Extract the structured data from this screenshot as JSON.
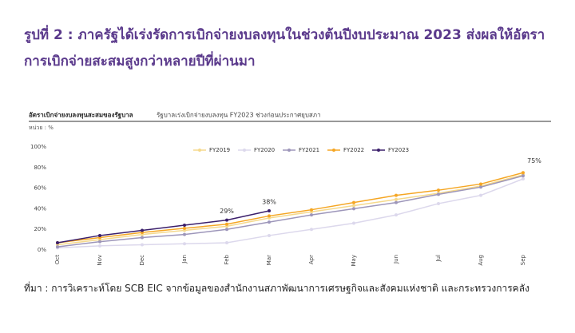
{
  "header": {
    "title": "รูปที่ 2 : ภาครัฐได้เร่งรัดการเบิกจ่ายงบลงทุนในช่วงต้นปีงบประมาณ 2023 ส่งผลให้อัตราการเบิกจ่ายสะสมสูงกว่าหลายปีที่ผ่านมา"
  },
  "chart_data": {
    "type": "line",
    "title": "อัตราเบิกจ่ายงบลงทุนสะสมของรัฐบาล",
    "subtitle": "รัฐบาลเร่งเบิกจ่ายงบลงทุน FY2023 ช่วงก่อนประกาศยุบสภา",
    "unit": "หน่วย : %",
    "categories": [
      "Oct",
      "Nov",
      "Dec",
      "Jan",
      "Feb",
      "Mar",
      "Apr",
      "May",
      "Jun",
      "Jul",
      "Aug",
      "Sep"
    ],
    "series": [
      {
        "name": "FY2019",
        "color": "#f5d98c",
        "values": [
          5,
          10,
          15,
          19,
          23,
          31,
          37,
          43,
          49,
          55,
          62,
          73
        ]
      },
      {
        "name": "FY2020",
        "color": "#dcd8ec",
        "values": [
          2,
          4,
          5,
          6,
          7,
          14,
          20,
          26,
          34,
          45,
          53,
          69
        ]
      },
      {
        "name": "FY2021",
        "color": "#9d96ba",
        "values": [
          3,
          8,
          12,
          15,
          20,
          27,
          34,
          40,
          46,
          54,
          61,
          72
        ]
      },
      {
        "name": "FY2022",
        "color": "#f5a623",
        "values": [
          7,
          12,
          17,
          21,
          25,
          33,
          39,
          46,
          53,
          58,
          64,
          75
        ],
        "value_labels": [
          null,
          null,
          null,
          null,
          null,
          null,
          null,
          null,
          null,
          null,
          null,
          "75%"
        ]
      },
      {
        "name": "FY2023",
        "color": "#3b1f6b",
        "values": [
          7,
          14,
          19,
          24,
          29,
          38,
          null,
          null,
          null,
          null,
          null,
          null
        ],
        "value_labels": [
          null,
          null,
          null,
          null,
          "29%",
          "38%",
          null,
          null,
          null,
          null,
          null,
          null
        ]
      }
    ],
    "ylim": [
      0,
      100
    ],
    "yticks": [
      {
        "value": 0,
        "label": "0%"
      },
      {
        "value": 20,
        "label": "20%"
      },
      {
        "value": 40,
        "label": "40%"
      },
      {
        "value": 60,
        "label": "60%"
      },
      {
        "value": 80,
        "label": "80%"
      },
      {
        "value": 100,
        "label": "100%"
      }
    ],
    "grid": false,
    "legend": "top"
  },
  "source": "ที่มา : การวิเคราะห์โดย SCB EIC จากข้อมูลของสำนักงานสภาพัฒนาการเศรษฐกิจและสังคมแห่งชาติ และกระทรวงการคลัง"
}
